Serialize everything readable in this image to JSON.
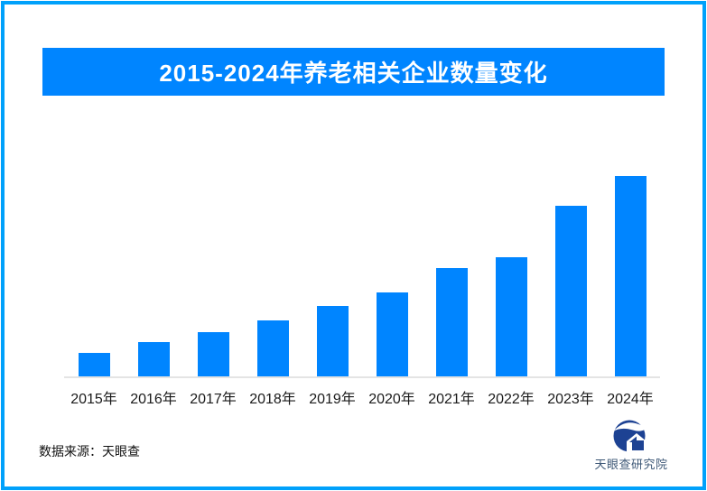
{
  "page": {
    "background_color": "#FFFFFF",
    "border_color": "#00A1FB"
  },
  "header": {
    "title": "2015-2024年养老相关企业数量变化",
    "banner_color": "#0085FF",
    "title_text_color": "#FFFFFF"
  },
  "chart_data": {
    "type": "bar",
    "title": "2015-2024年养老相关企业数量变化",
    "categories": [
      "2015年",
      "2016年",
      "2017年",
      "2018年",
      "2019年",
      "2020年",
      "2021年",
      "2022年",
      "2023年",
      "2024年"
    ],
    "values": [
      26,
      38,
      49,
      62,
      78,
      93,
      120,
      132,
      189,
      222
    ],
    "value_note": "no y-axis or data labels shown; values are relative bar heights estimated in pixels",
    "xlabel": "",
    "ylabel": "",
    "ylim": [
      0,
      230
    ],
    "grid": false,
    "legend": false,
    "bar_color": "#0085FF",
    "axis_line_color": "#E4E4E4",
    "tick_label_color": "#1A1A1A"
  },
  "footer": {
    "source_text": "数据来源：天眼查",
    "logo_text": "天眼查研究院",
    "logo_navy_color": "#1D4293",
    "logo_text_color": "#3E5877"
  }
}
